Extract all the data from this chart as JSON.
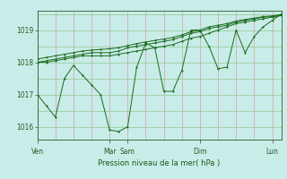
{
  "bg_color": "#c8ece8",
  "grid_color_v": "#d4a0a0",
  "grid_color_h": "#90c890",
  "line_color": "#1a6b1a",
  "xlabel": "Pression niveau de la mer( hPa )",
  "xlabel_color": "#1a5c1a",
  "tick_color": "#2a5c2a",
  "ylim": [
    1015.6,
    1019.6
  ],
  "yticks": [
    1016,
    1017,
    1018,
    1019
  ],
  "day_labels": [
    "Ven",
    "Mar",
    "Sam",
    "Dim",
    "Lun"
  ],
  "day_positions": [
    0,
    48,
    60,
    108,
    156
  ],
  "total_hours": 162,
  "series": [
    {
      "x": [
        0,
        6,
        12,
        18,
        24,
        30,
        36,
        42,
        48,
        54,
        60,
        66,
        72,
        78,
        84,
        90,
        96,
        102,
        108,
        114,
        120,
        126,
        132,
        138,
        144,
        150,
        156,
        162
      ],
      "y": [
        1017.0,
        1016.65,
        1016.3,
        1017.5,
        1017.9,
        1017.6,
        1017.3,
        1017.0,
        1015.9,
        1015.85,
        1016.0,
        1017.85,
        1018.6,
        1018.45,
        1017.1,
        1017.1,
        1017.75,
        1019.0,
        1019.0,
        1018.5,
        1017.8,
        1017.85,
        1019.0,
        1018.3,
        1018.8,
        1019.1,
        1019.3,
        1019.5
      ]
    },
    {
      "x": [
        0,
        6,
        12,
        18,
        24,
        30,
        36,
        42,
        48,
        54,
        60,
        66,
        72,
        78,
        84,
        90,
        96,
        102,
        108,
        114,
        120,
        126,
        132,
        138,
        144,
        150,
        156,
        162
      ],
      "y": [
        1018.0,
        1018.0,
        1018.05,
        1018.1,
        1018.15,
        1018.2,
        1018.2,
        1018.2,
        1018.2,
        1018.25,
        1018.3,
        1018.35,
        1018.4,
        1018.45,
        1018.5,
        1018.55,
        1018.65,
        1018.75,
        1018.8,
        1018.9,
        1019.0,
        1019.1,
        1019.2,
        1019.25,
        1019.3,
        1019.35,
        1019.4,
        1019.45
      ]
    },
    {
      "x": [
        0,
        6,
        12,
        18,
        24,
        30,
        36,
        42,
        48,
        54,
        60,
        66,
        72,
        78,
        84,
        90,
        96,
        102,
        108,
        114,
        120,
        126,
        132,
        138,
        144,
        150,
        156,
        162
      ],
      "y": [
        1018.0,
        1018.05,
        1018.1,
        1018.15,
        1018.2,
        1018.25,
        1018.3,
        1018.3,
        1018.3,
        1018.35,
        1018.45,
        1018.5,
        1018.55,
        1018.6,
        1018.65,
        1018.7,
        1018.8,
        1018.9,
        1018.95,
        1019.05,
        1019.1,
        1019.15,
        1019.25,
        1019.3,
        1019.35,
        1019.4,
        1019.42,
        1019.47
      ]
    },
    {
      "x": [
        0,
        6,
        12,
        18,
        24,
        30,
        36,
        42,
        48,
        54,
        60,
        66,
        72,
        78,
        84,
        90,
        96,
        102,
        108,
        114,
        120,
        126,
        132,
        138,
        144,
        150,
        156,
        162
      ],
      "y": [
        1018.1,
        1018.15,
        1018.2,
        1018.25,
        1018.3,
        1018.35,
        1018.38,
        1018.4,
        1018.42,
        1018.45,
        1018.52,
        1018.58,
        1018.63,
        1018.68,
        1018.72,
        1018.77,
        1018.85,
        1018.95,
        1019.0,
        1019.1,
        1019.15,
        1019.2,
        1019.28,
        1019.33,
        1019.37,
        1019.42,
        1019.44,
        1019.48
      ]
    }
  ],
  "vgrid_positions": [
    0,
    12,
    24,
    36,
    48,
    60,
    72,
    84,
    96,
    108,
    120,
    132,
    144,
    156,
    162
  ],
  "hgrid_positions": [
    1016,
    1016.5,
    1017,
    1017.5,
    1018,
    1018.5,
    1019,
    1019.5
  ]
}
